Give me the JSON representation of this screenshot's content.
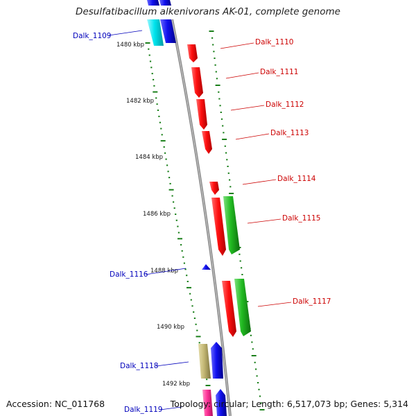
{
  "title": "Desulfatibacillum alkenivorans AK-01, complete genome",
  "accession": "Accession: NC_011768",
  "topology": "Topology: circular; Length: 6,517,073 bp; Genes: 5,314",
  "colors": {
    "red": "#ff1010",
    "green": "#22bb22",
    "blue": "#1010ee",
    "cyan": "#00e5ee",
    "olive": "#c4b874",
    "pink": "#ff3399",
    "backbone": "#8c8c8c",
    "tick": "#1a7f1a",
    "label_red": "#cc0000",
    "label_blue": "#0000bb"
  },
  "kbp_labels": [
    "1480 kbp",
    "1482 kbp",
    "1484 kbp",
    "1486 kbp",
    "1488 kbp",
    "1490 kbp",
    "1492 kbp"
  ],
  "gene_labels": {
    "dalk_1109": "Dalk_1109",
    "dalk_1110": "Dalk_1110",
    "dalk_1111": "Dalk_1111",
    "dalk_1112": "Dalk_1112",
    "dalk_1113": "Dalk_1113",
    "dalk_1114": "Dalk_1114",
    "dalk_1115": "Dalk_1115",
    "dalk_1116": "Dalk_1116",
    "dalk_1117": "Dalk_1117",
    "dalk_1118": "Dalk_1118",
    "dalk_1119": "Dalk_1119"
  }
}
